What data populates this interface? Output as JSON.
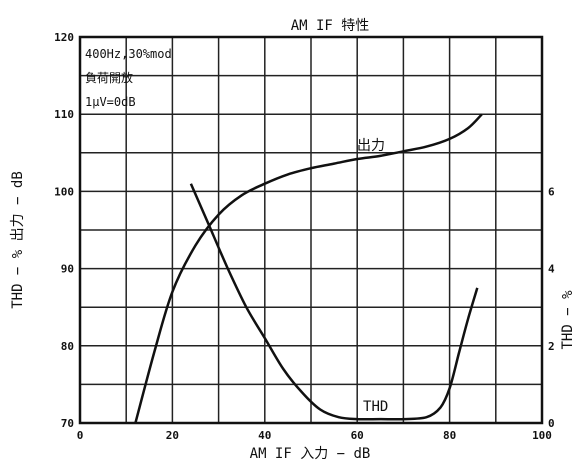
{
  "chart_data": {
    "type": "line",
    "title": "AM IF 特性",
    "xlabel": "AM IF 入力 − dB",
    "ylabel_left": "THD − % 出力 − dB",
    "ylabel_right": "THD − %",
    "xlim": [
      0,
      100
    ],
    "ylim_left": [
      70,
      120
    ],
    "ylim_right": [
      0,
      10
    ],
    "x_ticks": [
      "0",
      "20",
      "40",
      "60",
      "80",
      "100"
    ],
    "y_ticks_left": [
      "70",
      "80",
      "90",
      "100",
      "110",
      "120"
    ],
    "y_ticks_right": [
      "0",
      "2",
      "4",
      "6"
    ],
    "grid": true,
    "annotations": [
      "400Hz,30%mod",
      "負荷開放",
      "1μV=0dB"
    ],
    "series": [
      {
        "name": "出力",
        "axis": "left",
        "x": [
          12,
          16,
          20,
          25,
          30,
          35,
          40,
          45,
          50,
          55,
          60,
          65,
          70,
          75,
          80,
          84,
          87
        ],
        "y": [
          70,
          79,
          87,
          93,
          97,
          99.5,
          101,
          102.2,
          103,
          103.6,
          104.2,
          104.6,
          105.2,
          105.8,
          106.8,
          108.2,
          110
        ]
      },
      {
        "name": "THD",
        "axis": "right",
        "x": [
          24,
          28,
          32,
          36,
          40,
          44,
          48,
          52,
          56,
          60,
          65,
          70,
          75,
          78,
          80,
          82,
          84,
          86
        ],
        "y": [
          6.2,
          5.1,
          4.0,
          3.0,
          2.2,
          1.4,
          0.8,
          0.35,
          0.15,
          0.1,
          0.1,
          0.1,
          0.15,
          0.4,
          0.9,
          1.8,
          2.7,
          3.5
        ]
      }
    ]
  }
}
